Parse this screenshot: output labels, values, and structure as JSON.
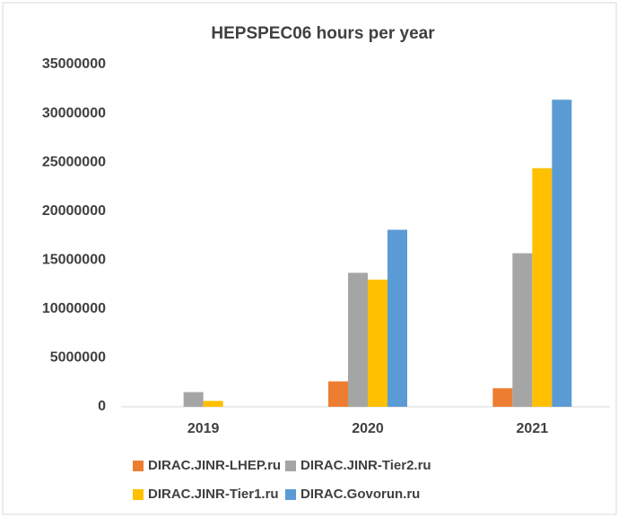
{
  "chart_data": {
    "type": "bar",
    "title": "HEPSPEC06 hours per year",
    "categories": [
      "2019",
      "2020",
      "2021"
    ],
    "series": [
      {
        "name": "DIRAC.JINR-LHEP.ru",
        "color": "#ed7d31",
        "values": [
          0,
          2600000,
          1900000
        ]
      },
      {
        "name": "DIRAC.JINR-Tier2.ru",
        "color": "#a5a5a5",
        "values": [
          1500000,
          13700000,
          15700000
        ]
      },
      {
        "name": "DIRAC.JINR-Tier1.ru",
        "color": "#ffc000",
        "values": [
          600000,
          13000000,
          24400000
        ]
      },
      {
        "name": "DIRAC.Govorun.ru",
        "color": "#5b9bd5",
        "values": [
          0,
          18100000,
          31400000
        ]
      }
    ],
    "ylim": [
      0,
      35000000
    ],
    "yticks": [
      0,
      5000000,
      10000000,
      15000000,
      20000000,
      25000000,
      30000000,
      35000000
    ],
    "grid": false,
    "legend": "bottom"
  }
}
